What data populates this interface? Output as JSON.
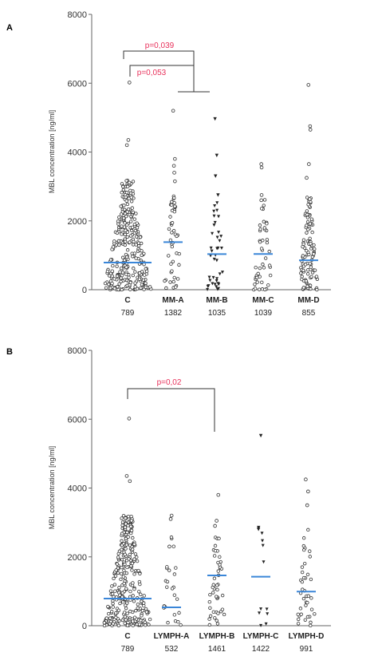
{
  "chart_data": [
    {
      "type": "scatter",
      "panel": "A",
      "ylabel": "MBL concentration [ng/ml]",
      "ylim": [
        0,
        8000
      ],
      "yticks": [
        "0",
        "2000",
        "4000",
        "6000",
        "8000"
      ],
      "categories": [
        "C",
        "MM-A",
        "MM-B",
        "MM-C",
        "MM-D"
      ],
      "medians": [
        789,
        1382,
        1035,
        1039,
        855
      ],
      "median_labels": [
        "789",
        "1382",
        "1035",
        "1039",
        "855"
      ],
      "outliers": [
        {
          "category": "C",
          "values": [
            6020,
            4350,
            4200,
            2580
          ]
        },
        {
          "category": "MM-A",
          "values": [
            5200,
            3800,
            3600,
            3400,
            3150
          ]
        },
        {
          "category": "MM-B",
          "values": [
            4960,
            3900,
            3300,
            2750
          ]
        },
        {
          "category": "MM-C",
          "values": [
            3650,
            3550,
            2750,
            2600
          ]
        },
        {
          "category": "MM-D",
          "values": [
            5950,
            4750,
            4650,
            3650,
            3250
          ]
        }
      ],
      "annotations": [
        {
          "text": "p=0,039",
          "from": "C",
          "to": "MM-A .. MM-D"
        },
        {
          "text": "p=0,053",
          "from": "C",
          "to": "MM-A"
        }
      ],
      "colors": {
        "median": "#3a86d8",
        "pvalue": "#e8305a"
      }
    },
    {
      "type": "scatter",
      "panel": "B",
      "ylabel": "MBL concentration [ng/ml]",
      "ylim": [
        0,
        8000
      ],
      "yticks": [
        "0",
        "2000",
        "4000",
        "6000",
        "8000"
      ],
      "categories": [
        "C",
        "LYMPH-A",
        "LYMPH-B",
        "LYMPH-C",
        "LYMPH-D"
      ],
      "medians": [
        789,
        532,
        1461,
        1422,
        991
      ],
      "median_labels": [
        "789",
        "532",
        "1461",
        "1422",
        "991"
      ],
      "outliers": [
        {
          "category": "C",
          "values": [
            6020,
            4350,
            4200,
            2580
          ]
        },
        {
          "category": "LYMPH-A",
          "values": [
            3200,
            3100,
            2300
          ]
        },
        {
          "category": "LYMPH-B",
          "values": [
            3800,
            3050,
            2900
          ]
        },
        {
          "category": "LYMPH-C",
          "values": [
            5520,
            2850,
            2800
          ]
        },
        {
          "category": "LYMPH-D",
          "values": [
            4250,
            3900,
            3500
          ]
        }
      ],
      "annotations": [
        {
          "text": "p=0,02",
          "from": "C",
          "to": "LYMPH-B"
        }
      ],
      "colors": {
        "median": "#3a86d8",
        "pvalue": "#e8305a"
      }
    }
  ]
}
